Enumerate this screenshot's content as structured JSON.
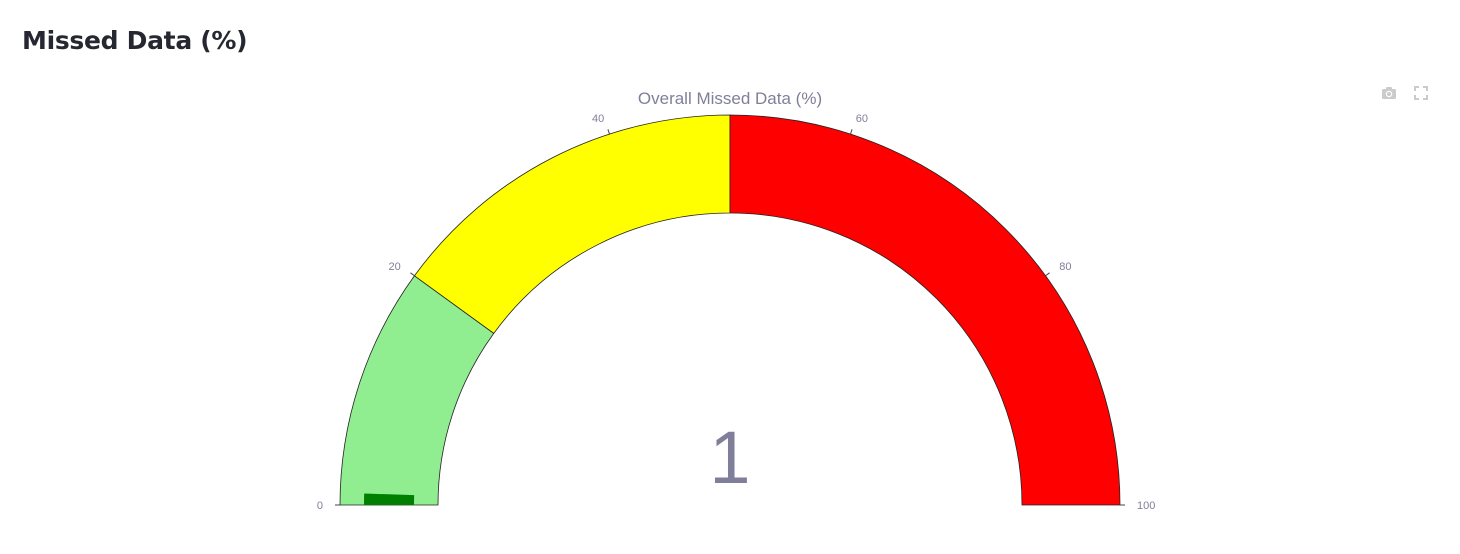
{
  "page": {
    "section_title": "Missed Data (%)"
  },
  "modebar": {
    "icons": [
      "camera-icon",
      "fullscreen-icon"
    ]
  },
  "chart_data": {
    "type": "gauge",
    "title": "Overall Missed Data (%)",
    "value": 1,
    "value_label": "1",
    "range": [
      0,
      100
    ],
    "ticks": [
      0,
      20,
      40,
      60,
      80,
      100
    ],
    "tick_labels": [
      "0",
      "20",
      "40",
      "60",
      "80",
      "100"
    ],
    "bar_color": "#008000",
    "steps": [
      {
        "range": [
          0,
          20
        ],
        "color": "#90ee90"
      },
      {
        "range": [
          20,
          50
        ],
        "color": "#ffff00"
      },
      {
        "range": [
          50,
          100
        ],
        "color": "#ff0000"
      }
    ]
  }
}
